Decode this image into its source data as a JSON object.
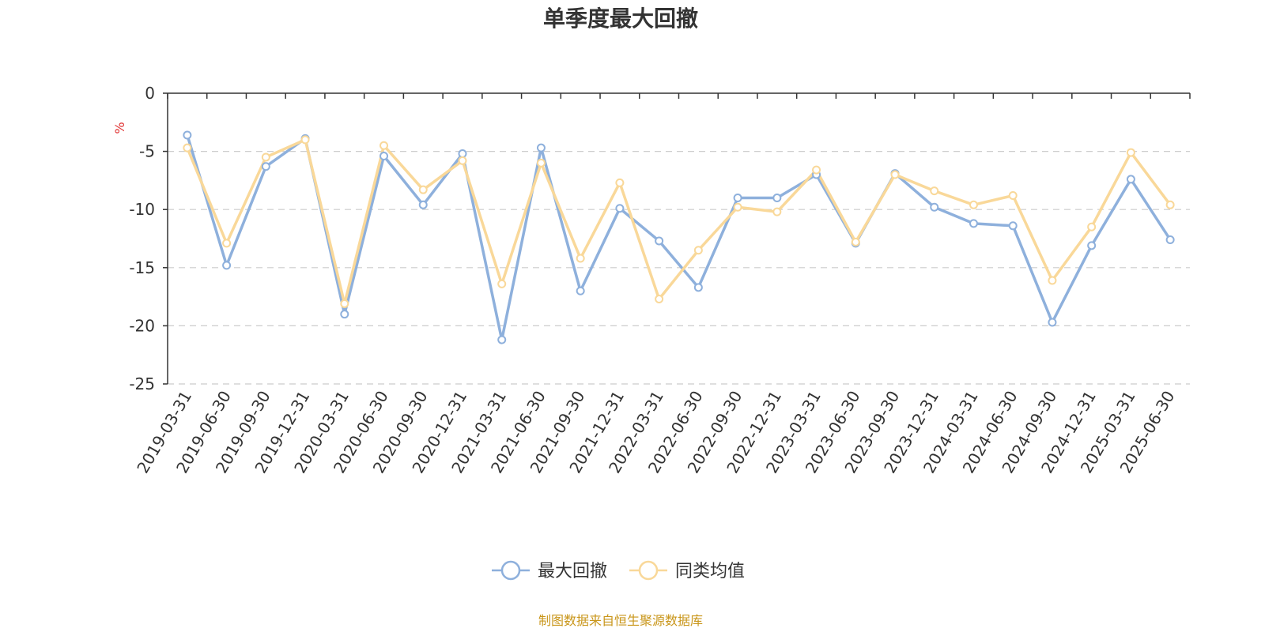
{
  "chart_data": {
    "type": "line",
    "title": "单季度最大回撤",
    "ylabel": "%",
    "ylim": [
      -25,
      0
    ],
    "yticks": [
      0,
      -5,
      -10,
      -15,
      -20,
      -25
    ],
    "grid": true,
    "legend_position": "bottom",
    "categories": [
      "2019-03-31",
      "2019-06-30",
      "2019-09-30",
      "2019-12-31",
      "2020-03-31",
      "2020-06-30",
      "2020-09-30",
      "2020-12-31",
      "2021-03-31",
      "2021-06-30",
      "2021-09-30",
      "2021-12-31",
      "2022-03-31",
      "2022-06-30",
      "2022-09-30",
      "2022-12-31",
      "2023-03-31",
      "2023-06-30",
      "2023-09-30",
      "2023-12-31",
      "2024-03-31",
      "2024-06-30",
      "2024-09-30",
      "2024-12-31",
      "2025-03-31",
      "2025-06-30"
    ],
    "series": [
      {
        "name": "最大回撤",
        "color": "#8eb0dc",
        "values": [
          -3.6,
          -14.8,
          -6.3,
          -3.9,
          -19.0,
          -5.4,
          -9.6,
          -5.2,
          -21.2,
          -4.7,
          -17.0,
          -9.9,
          -12.7,
          -16.7,
          -9.0,
          -9.0,
          -7.0,
          -12.9,
          -6.9,
          -9.8,
          -11.2,
          -11.4,
          -19.7,
          -13.1,
          -7.4,
          -12.6
        ]
      },
      {
        "name": "同类均值",
        "color": "#f9d899",
        "values": [
          -4.7,
          -12.9,
          -5.5,
          -4.0,
          -18.1,
          -4.5,
          -8.3,
          -5.8,
          -16.4,
          -6.0,
          -14.2,
          -7.7,
          -17.7,
          -13.5,
          -9.8,
          -10.2,
          -6.6,
          -12.8,
          -7.0,
          -8.4,
          -9.6,
          -8.8,
          -16.1,
          -11.5,
          -5.1,
          -9.6
        ]
      }
    ],
    "source": "制图数据来自恒生聚源数据库",
    "source_color": "#c9961a",
    "ylabel_color": "#e03030"
  }
}
